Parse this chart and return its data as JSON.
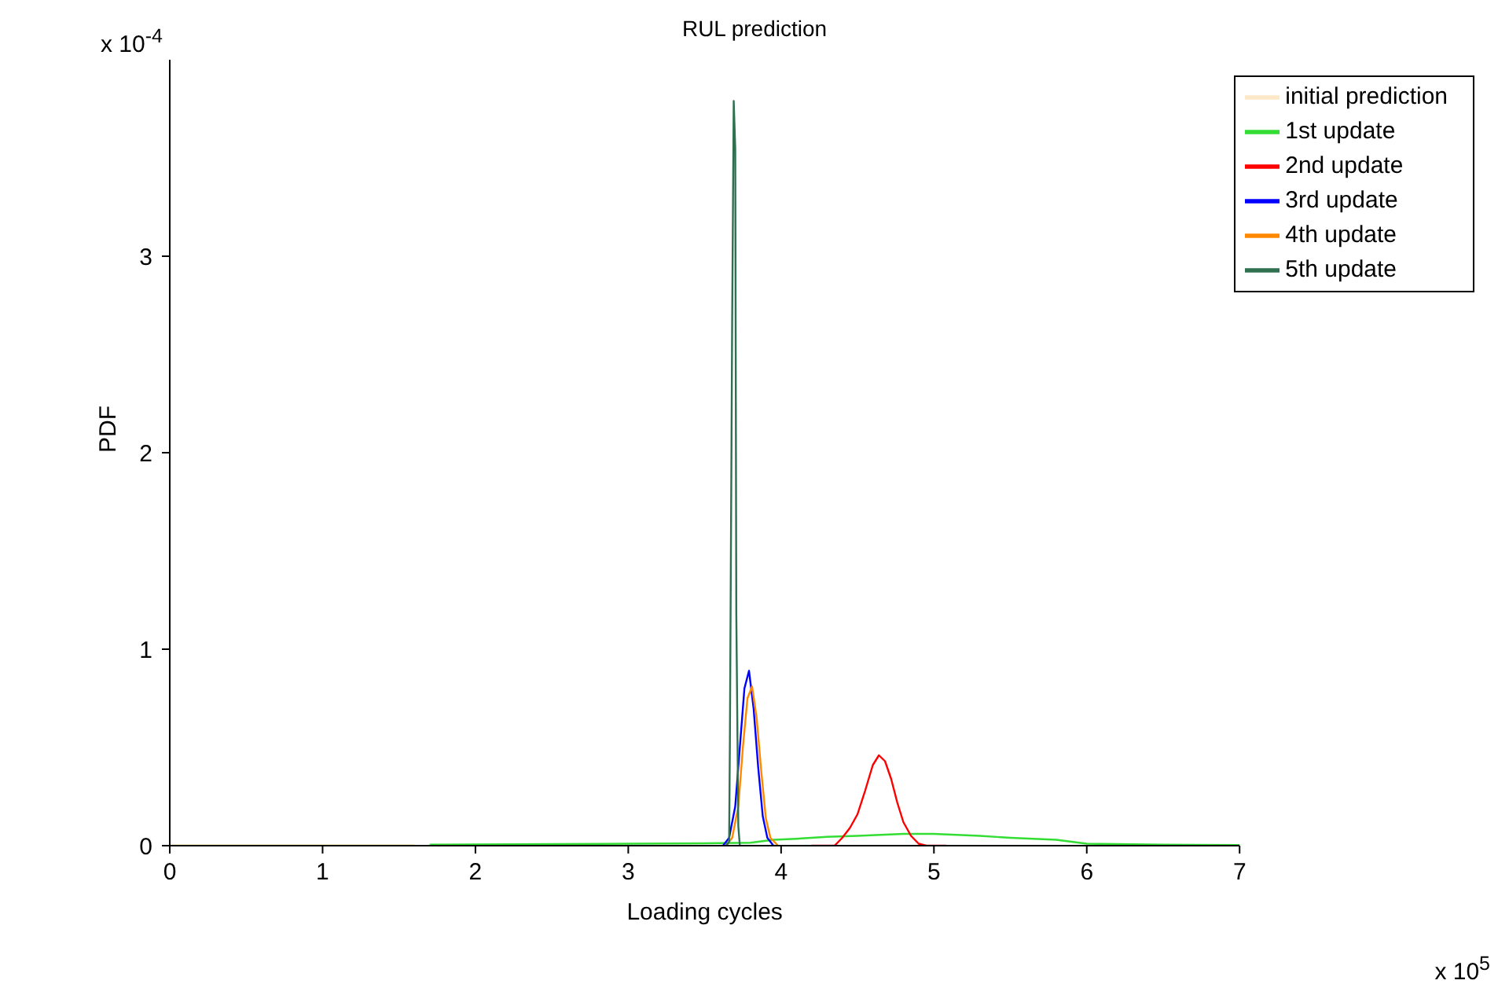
{
  "chart_data": {
    "type": "line",
    "title": "RUL prediction",
    "xlabel": "Loading cycles",
    "ylabel": "PDF",
    "annotations": [
      "x 10$^{-4}$",
      "x 10$^{5}$"
    ],
    "xlim": [
      0,
      7
    ],
    "xticks": [
      0,
      1,
      2,
      3,
      4,
      5,
      6,
      7
    ],
    "ylim": [
      0,
      4
    ],
    "yticks": [
      0,
      1,
      2,
      3
    ],
    "grid": false,
    "legend": "top right",
    "marker": "none",
    "line_style": "solid",
    "series": [
      {
        "name": "initial prediction",
        "color": "#fde8c8",
        "x": [
          0,
          0.8,
          1.6
        ],
        "values": [
          0.003,
          0.003,
          0.003
        ]
      },
      {
        "name": "1st update",
        "color": "#33dd33",
        "x": [
          1.7,
          2.5,
          3.0,
          3.5,
          3.8,
          3.95,
          4.1,
          4.3,
          4.5,
          4.8,
          5.0,
          5.3,
          5.5,
          5.8,
          6.0,
          6.5,
          7.0
        ],
        "values": [
          0.005,
          0.008,
          0.01,
          0.012,
          0.015,
          0.03,
          0.035,
          0.045,
          0.05,
          0.06,
          0.06,
          0.05,
          0.04,
          0.03,
          0.01,
          0.005,
          0.003
        ]
      },
      {
        "name": "2nd update",
        "color": "#ff0000",
        "x": [
          4.2,
          4.35,
          4.4,
          4.45,
          4.5,
          4.55,
          4.6,
          4.64,
          4.68,
          4.72,
          4.76,
          4.8,
          4.85,
          4.9,
          4.95,
          5.08
        ],
        "values": [
          0,
          0,
          0.04,
          0.09,
          0.16,
          0.28,
          0.41,
          0.46,
          0.43,
          0.34,
          0.22,
          0.12,
          0.05,
          0.01,
          0,
          0
        ]
      },
      {
        "name": "3rd update",
        "color": "#0000ff",
        "x": [
          3.62,
          3.66,
          3.7,
          3.73,
          3.76,
          3.79,
          3.82,
          3.85,
          3.88,
          3.91,
          3.95
        ],
        "values": [
          0,
          0.04,
          0.2,
          0.5,
          0.8,
          0.89,
          0.7,
          0.4,
          0.15,
          0.04,
          0
        ]
      },
      {
        "name": "4th update",
        "color": "#ff8800",
        "x": [
          3.64,
          3.68,
          3.72,
          3.75,
          3.78,
          3.81,
          3.84,
          3.87,
          3.9,
          3.93,
          3.98
        ],
        "values": [
          0,
          0.04,
          0.2,
          0.5,
          0.75,
          0.81,
          0.65,
          0.38,
          0.14,
          0.04,
          0
        ]
      },
      {
        "name": "5th update",
        "color": "#2e7050",
        "x": [
          3.64,
          3.66,
          3.665,
          3.68,
          3.69,
          3.7,
          3.707,
          3.72,
          3.73
        ],
        "values": [
          0,
          0.02,
          0.54,
          2.69,
          3.79,
          3.55,
          1.18,
          0.1,
          0
        ]
      }
    ]
  }
}
